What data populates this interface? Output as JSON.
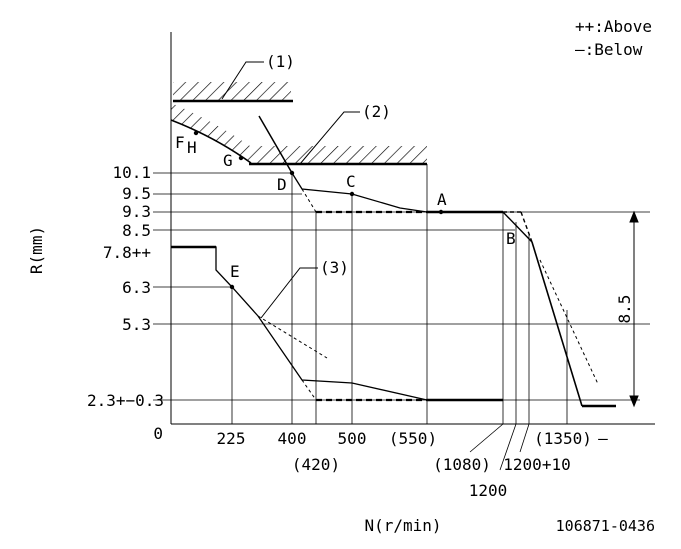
{
  "legend": {
    "above": "++:Above",
    "below": "—:Below"
  },
  "axes": {
    "x_label": "N(r/min)",
    "y_label": "R(mm)",
    "origin": "0"
  },
  "y_ticks": {
    "t101": "10.1",
    "t95": "9.5",
    "t93": "9.3",
    "t85": "8.5",
    "t78": "7.8++",
    "t63": "6.3",
    "t53": "5.3",
    "t23": "2.3+−0.3"
  },
  "x_ticks": {
    "t225": "225",
    "t400": "400",
    "t420": "(420)",
    "t500": "500",
    "t550": "(550)",
    "t1080": "(1080)",
    "t1200": "1200",
    "t1200b": "1200+10",
    "t1350": "(1350)",
    "dash": "—"
  },
  "points": {
    "A": "A",
    "B": "B",
    "C": "C",
    "D": "D",
    "E": "E",
    "F": "F",
    "G": "G",
    "H": "H"
  },
  "callouts": {
    "c1": "(1)",
    "c2": "(2)",
    "c3": "(3)"
  },
  "dimension": "8.5",
  "drawing_number": "106871-0436"
}
